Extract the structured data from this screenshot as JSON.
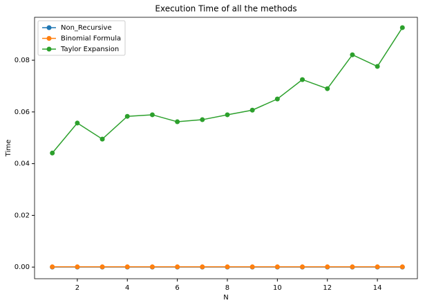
{
  "chart_data": {
    "type": "line",
    "title": "Execution Time of all the methods",
    "x_label": "N",
    "y_label": "Time",
    "x": [
      1,
      2,
      3,
      4,
      5,
      6,
      7,
      8,
      9,
      10,
      11,
      12,
      13,
      14,
      15
    ],
    "series": [
      {
        "name": "Non_Recursive",
        "color": "#1f77b4",
        "values": [
          0,
          0,
          0,
          0,
          0,
          0,
          0,
          0,
          0,
          0,
          0,
          0,
          0,
          0,
          0
        ]
      },
      {
        "name": "Binomial Formula",
        "color": "#ff7f0e",
        "values": [
          0.0001,
          0.0001,
          0.0001,
          0.0001,
          0.0001,
          0.0001,
          0.0001,
          0.0001,
          0.0001,
          0.0001,
          0.0001,
          0.0001,
          0.0001,
          0.0001,
          0.0001
        ]
      },
      {
        "name": "Taylor Expansion",
        "color": "#2ca02c",
        "values": [
          0.0441,
          0.0557,
          0.0495,
          0.0583,
          0.0589,
          0.0562,
          0.057,
          0.0589,
          0.0607,
          0.065,
          0.0725,
          0.069,
          0.0821,
          0.0776,
          0.0926
        ]
      }
    ],
    "xlim": [
      0.29,
      15.6
    ],
    "ylim": [
      -0.0045,
      0.0966
    ],
    "xticks": [
      2,
      4,
      6,
      8,
      10,
      12,
      14
    ],
    "yticks": [
      {
        "value": 0,
        "label": "0.00"
      },
      {
        "value": 0.02,
        "label": "0.02"
      },
      {
        "value": 0.04,
        "label": "0.04"
      },
      {
        "value": 0.06,
        "label": "0.06"
      },
      {
        "value": 0.08,
        "label": "0.08"
      }
    ],
    "legend": "upper left",
    "grid": false
  }
}
